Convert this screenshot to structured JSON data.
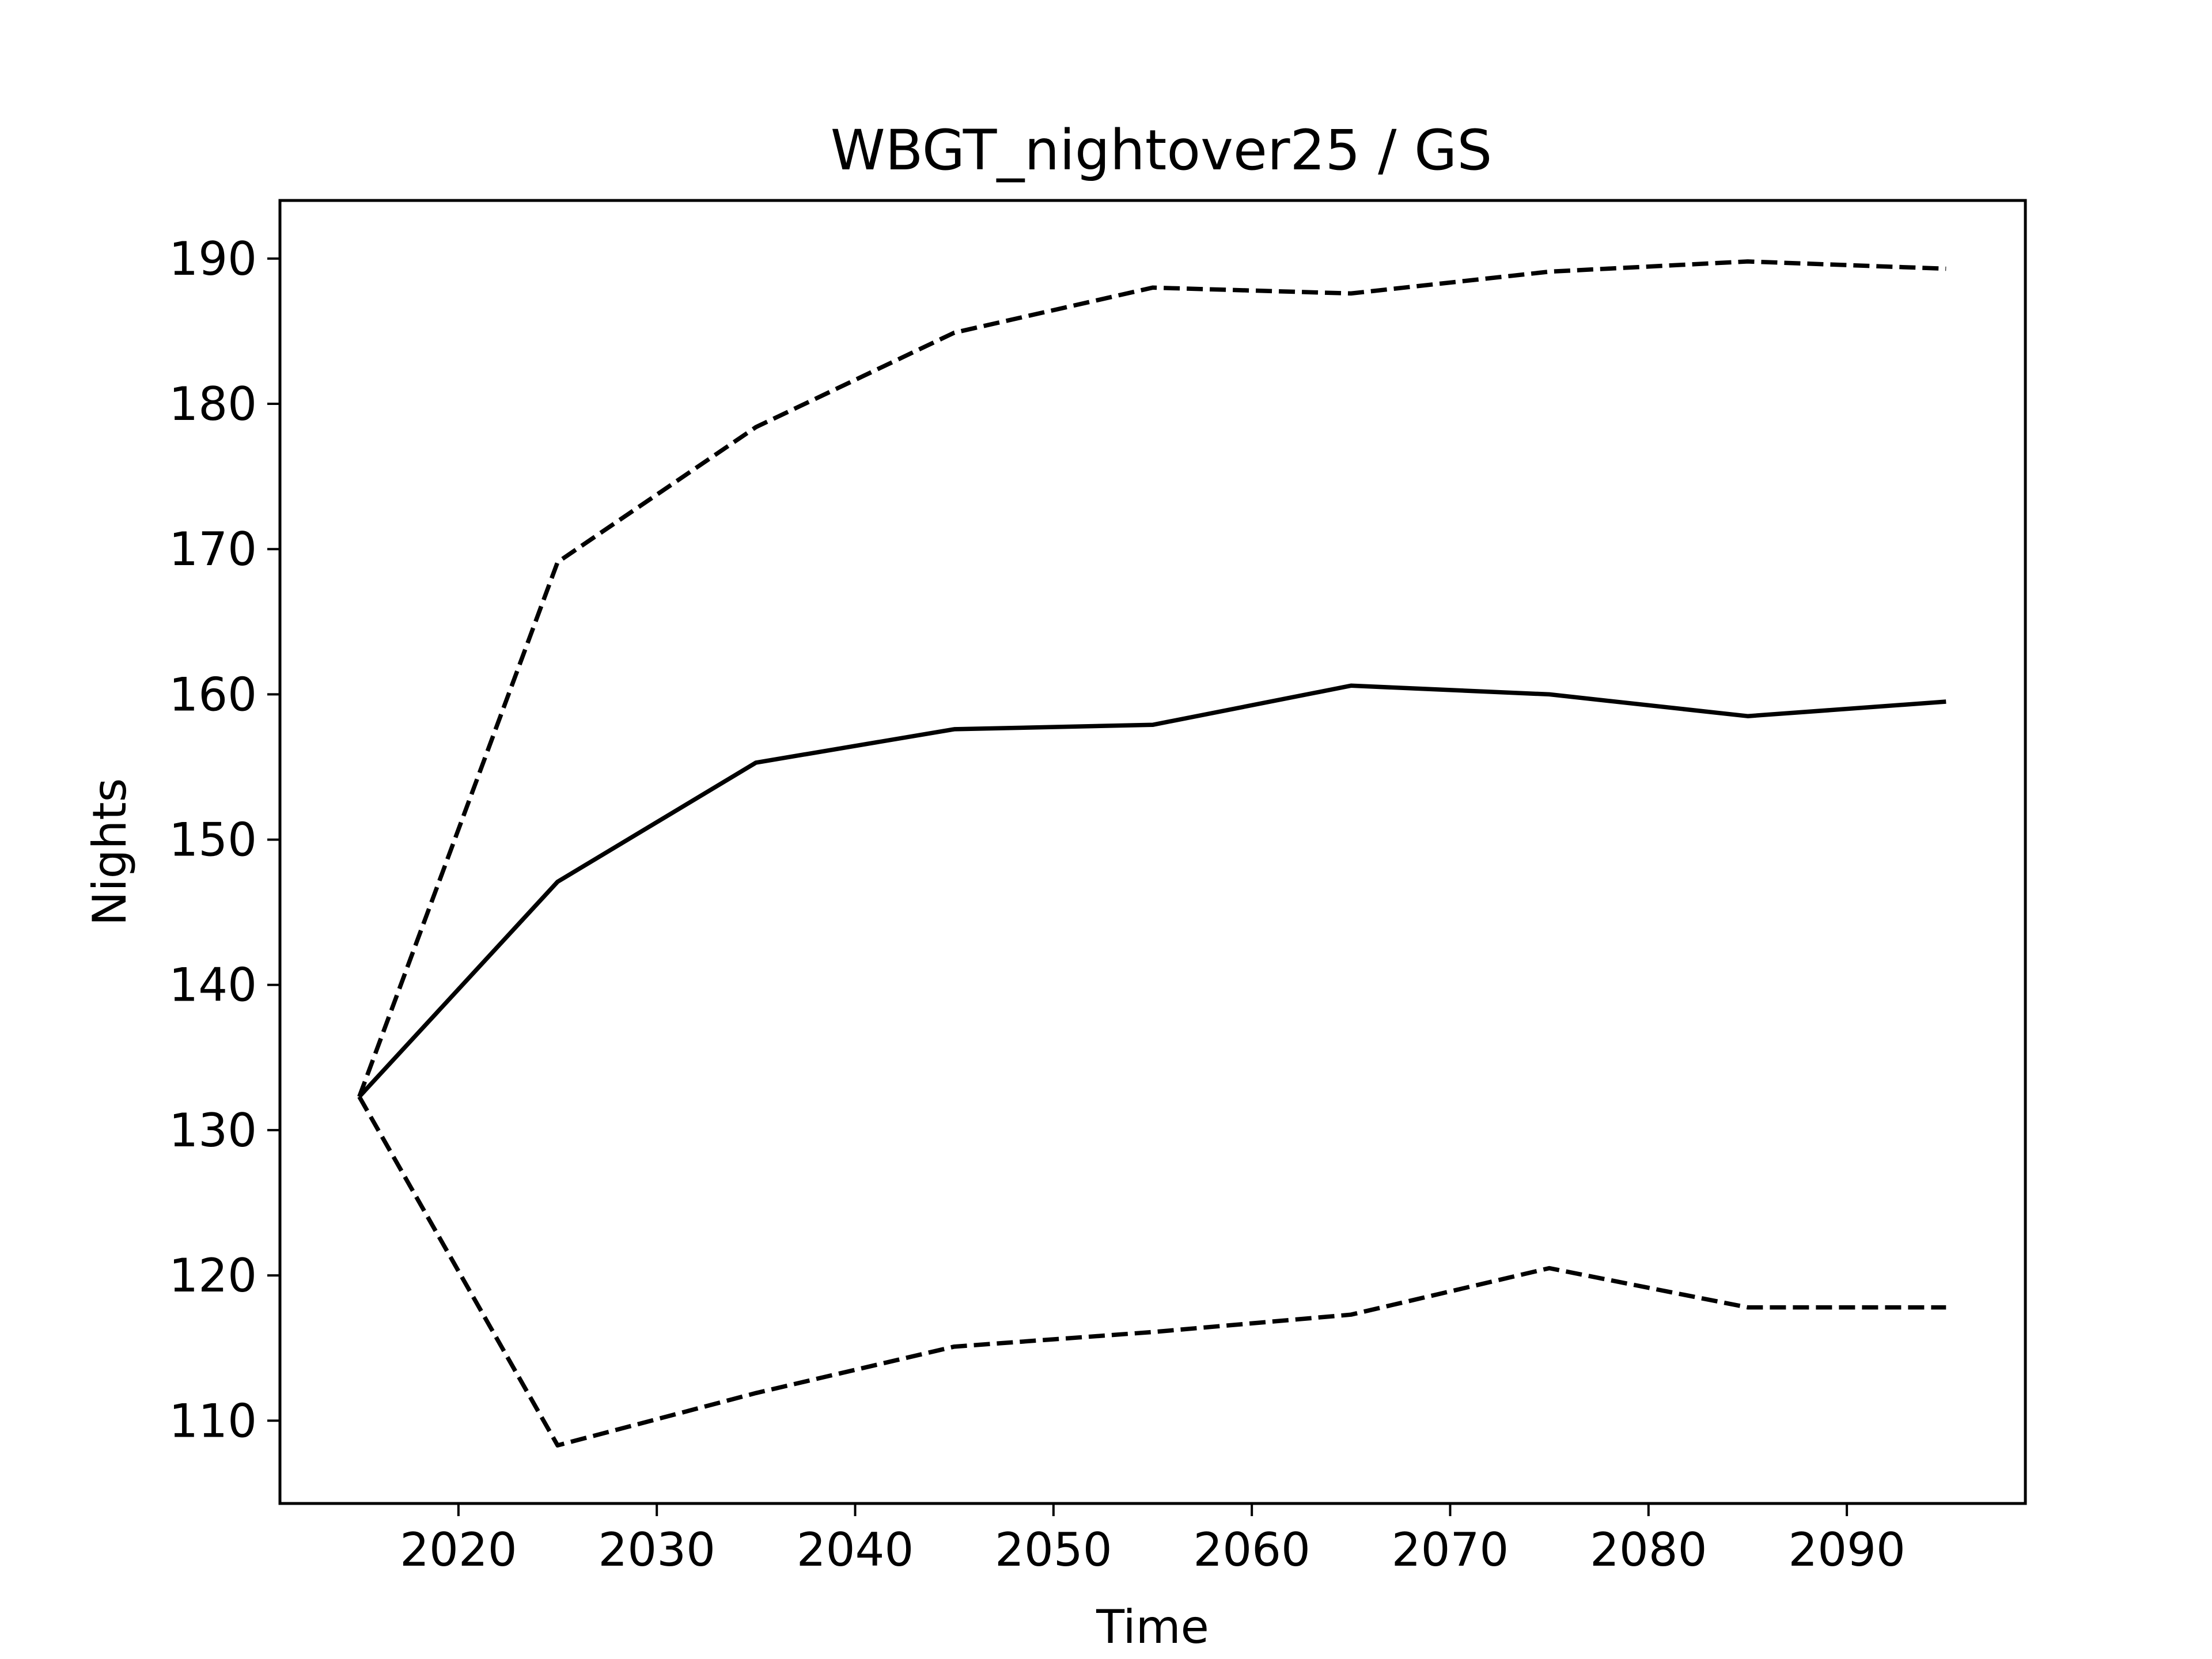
{
  "chart_data": {
    "type": "line",
    "title": "WBGT_nightover25 / GS",
    "xlabel": "Time",
    "ylabel": "Nights",
    "x": [
      2015,
      2025,
      2035,
      2045,
      2055,
      2065,
      2075,
      2085,
      2095
    ],
    "xlim": [
      2011,
      2099
    ],
    "ylim": [
      104.3,
      194.0
    ],
    "xticks": [
      2020,
      2030,
      2040,
      2050,
      2060,
      2070,
      2080,
      2090
    ],
    "yticks": [
      110,
      120,
      130,
      140,
      150,
      160,
      170,
      180,
      190
    ],
    "grid": false,
    "series": [
      {
        "style": "dashed",
        "color": "#000000",
        "values": [
          132.3,
          169.1,
          178.4,
          184.9,
          188.0,
          187.6,
          189.1,
          189.8,
          189.3
        ]
      },
      {
        "style": "solid",
        "color": "#000000",
        "values": [
          132.3,
          147.1,
          155.3,
          157.6,
          157.9,
          160.6,
          160.0,
          158.5,
          159.5
        ]
      },
      {
        "style": "dashed",
        "color": "#000000",
        "values": [
          132.3,
          108.3,
          111.9,
          115.1,
          116.1,
          117.3,
          120.5,
          117.8,
          117.8
        ]
      }
    ]
  }
}
